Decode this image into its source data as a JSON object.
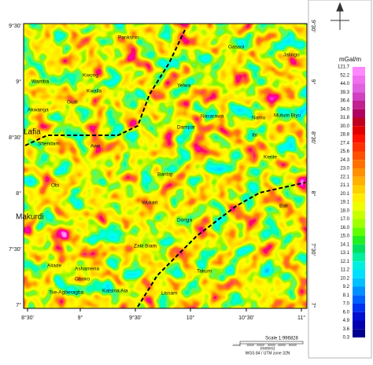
{
  "map": {
    "x_axis_labels": [
      "8°30'",
      "9°",
      "9°30'",
      "10°",
      "10°30'",
      "11°"
    ],
    "y_axis_labels": [
      "9°30'",
      "9°",
      "8°30'",
      "8°",
      "7°30'",
      "7°"
    ],
    "places": [
      "Pankshin",
      "Kwong",
      "Kwalla",
      "Wamba",
      "Akwanga",
      "Gudi",
      "Lafia",
      "Awe",
      "Shendam",
      "Yelwa",
      "Makurdi",
      "Obi",
      "Dampar",
      "Ibi",
      "Bantaji",
      "Wukari",
      "Donga",
      "Zaki Biam",
      "Takum",
      "Lissam",
      "Katsina Ala",
      "Ashamena",
      "Gboko",
      "Aliade",
      "Tse-Agberagba",
      "Nasarawa",
      "Namu",
      "Kente",
      "Gassol",
      "Mutum Biyu",
      "Jalingo",
      "Bali"
    ],
    "legend": {
      "title": "mGal/m",
      "labels": [
        "121.7",
        "52.2",
        "44.0",
        "39.3",
        "36.4",
        "34.0",
        "31.8",
        "30.0",
        "28.8",
        "27.4",
        "25.6",
        "24.3",
        "23.0",
        "22.1",
        "21.1",
        "20.1",
        "19.1",
        "18.0",
        "17.0",
        "16.0",
        "15.0",
        "14.1",
        "13.1",
        "12.1",
        "11.2",
        "10.2",
        "9.2",
        "8.1",
        "7.0",
        "6.0",
        "4.9",
        "3.6",
        "0.3"
      ]
    },
    "scale": {
      "title": "Scale 1:996828",
      "units": "(meters)",
      "projection": "WGS 84 / UTM zone 32N",
      "ticks": [
        "10000",
        "0",
        "10000",
        "20000",
        "30000",
        "40000",
        "50000"
      ]
    }
  }
}
